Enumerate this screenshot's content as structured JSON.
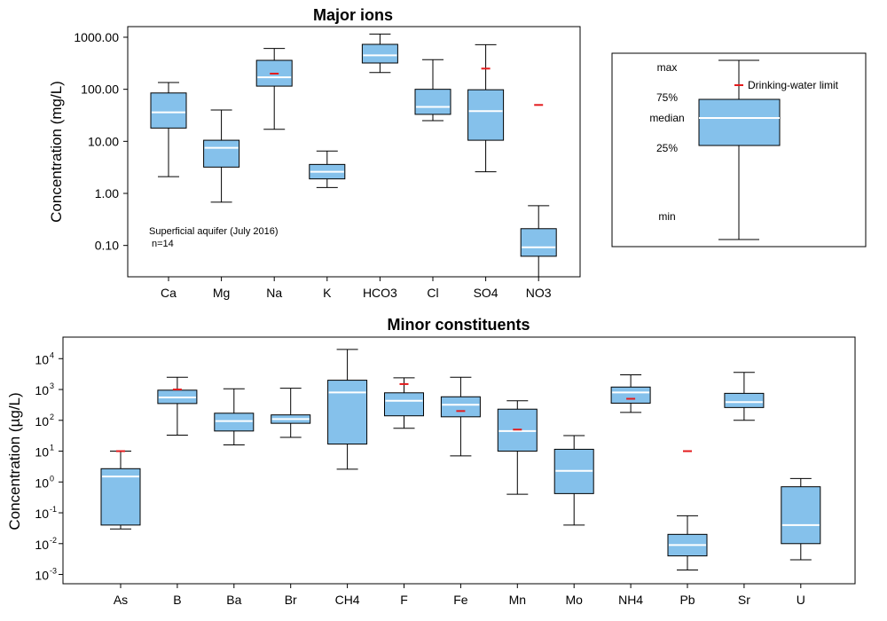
{
  "colors": {
    "box_fill": "#85C1EB",
    "median": "#FFFFFF",
    "limit": "#E31A1C",
    "line": "#000000"
  },
  "chart_data": [
    {
      "type": "boxplot",
      "title": "Major ions",
      "ylabel": "Concentration (mg/L)",
      "yscale": "log",
      "ylim": [
        0.025,
        1600
      ],
      "ytick_values": [
        0.1,
        1,
        10,
        100,
        1000
      ],
      "ytick_labels": [
        "0.10",
        "1.00",
        "10.00",
        "100.00",
        "1000.00"
      ],
      "annotation": [
        "Superficial aquifer (July 2016)",
        "n=14"
      ],
      "categories": [
        "Ca",
        "Mg",
        "Na",
        "K",
        "HCO3",
        "Cl",
        "SO4",
        "NO3"
      ],
      "boxes": [
        {
          "name": "Ca",
          "min": 2.1,
          "q1": 18,
          "median": 36,
          "q3": 85,
          "max": 135,
          "limit": null
        },
        {
          "name": "Mg",
          "min": 0.68,
          "q1": 3.2,
          "median": 7.5,
          "q3": 10.5,
          "max": 40,
          "limit": null
        },
        {
          "name": "Na",
          "min": 17,
          "q1": 115,
          "median": 170,
          "q3": 360,
          "max": 610,
          "limit": 200
        },
        {
          "name": "K",
          "min": 1.3,
          "q1": 1.9,
          "median": 2.6,
          "q3": 3.6,
          "max": 6.5,
          "limit": null
        },
        {
          "name": "HCO3",
          "min": 210,
          "q1": 320,
          "median": 450,
          "q3": 730,
          "max": 1150,
          "limit": null
        },
        {
          "name": "Cl",
          "min": 25,
          "q1": 33,
          "median": 46,
          "q3": 100,
          "max": 370,
          "limit": null
        },
        {
          "name": "SO4",
          "min": 2.6,
          "q1": 10.5,
          "median": 38,
          "q3": 98,
          "max": 720,
          "limit": 250
        },
        {
          "name": "NO3",
          "min": 0.025,
          "q1": 0.062,
          "median": 0.092,
          "q3": 0.21,
          "max": 0.58,
          "limit": 50
        }
      ]
    },
    {
      "type": "boxplot",
      "title": "Minor constituents",
      "ylabel": "Concentration (µg/L)",
      "yscale": "log",
      "ylim": [
        0.0005,
        50000
      ],
      "ytick_values": [
        0.001,
        0.01,
        0.1,
        1,
        10,
        100,
        1000,
        10000
      ],
      "ytick_base": "10",
      "ytick_exponents": [
        "-3",
        "-2",
        "-1",
        "0",
        "1",
        "2",
        "3",
        "4"
      ],
      "categories": [
        "As",
        "B",
        "Ba",
        "Br",
        "CH4",
        "F",
        "Fe",
        "Mn",
        "Mo",
        "NH4",
        "Pb",
        "Sr",
        "U"
      ],
      "boxes": [
        {
          "name": "As",
          "min": 0.03,
          "q1": 0.04,
          "median": 1.5,
          "q3": 2.7,
          "max": 10,
          "limit": 10
        },
        {
          "name": "B",
          "min": 33,
          "q1": 350,
          "median": 550,
          "q3": 950,
          "max": 2500,
          "limit": 1000
        },
        {
          "name": "Ba",
          "min": 16,
          "q1": 45,
          "median": 95,
          "q3": 170,
          "max": 1050,
          "limit": null
        },
        {
          "name": "Br",
          "min": 28,
          "q1": 80,
          "median": 110,
          "q3": 150,
          "max": 1100,
          "limit": null
        },
        {
          "name": "CH4",
          "min": 2.6,
          "q1": 17,
          "median": 800,
          "q3": 2000,
          "max": 20000,
          "limit": null
        },
        {
          "name": "F",
          "min": 55,
          "q1": 140,
          "median": 430,
          "q3": 780,
          "max": 2400,
          "limit": 1500
        },
        {
          "name": "Fe",
          "min": 7,
          "q1": 130,
          "median": 320,
          "q3": 580,
          "max": 2500,
          "limit": 200
        },
        {
          "name": "Mn",
          "min": 0.4,
          "q1": 10,
          "median": 45,
          "q3": 230,
          "max": 430,
          "limit": 50
        },
        {
          "name": "Mo",
          "min": 0.04,
          "q1": 0.42,
          "median": 2.3,
          "q3": 11.5,
          "max": 32,
          "limit": null
        },
        {
          "name": "NH4",
          "min": 180,
          "q1": 360,
          "median": 800,
          "q3": 1200,
          "max": 3000,
          "limit": 500
        },
        {
          "name": "Pb",
          "min": 0.0014,
          "q1": 0.004,
          "median": 0.009,
          "q3": 0.02,
          "max": 0.08,
          "limit": 10
        },
        {
          "name": "Sr",
          "min": 100,
          "q1": 260,
          "median": 390,
          "q3": 750,
          "max": 3600,
          "limit": null
        },
        {
          "name": "U",
          "min": 0.003,
          "q1": 0.01,
          "median": 0.04,
          "q3": 0.7,
          "max": 1.3,
          "limit": null
        }
      ]
    }
  ],
  "legend": {
    "max": "max",
    "q3": "75%",
    "median": "median",
    "q1": "25%",
    "min": "min",
    "limit": "Drinking-water limit"
  }
}
